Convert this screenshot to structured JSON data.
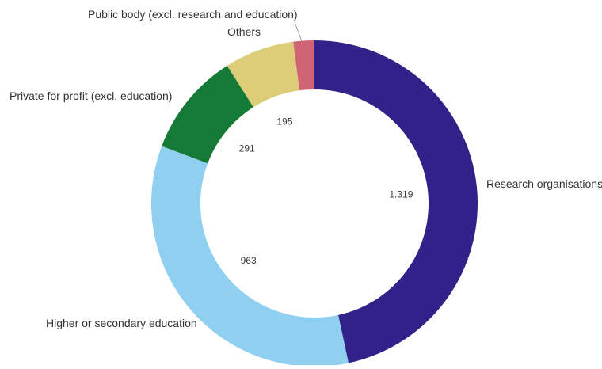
{
  "chart_data": {
    "type": "pie",
    "donut": true,
    "title": "",
    "categories": [
      "Research organisations",
      "Higher or secondary education",
      "Private for profit (excl. education)",
      "Others",
      "Public body (excl. research and education)"
    ],
    "values": [
      1319,
      963,
      291,
      195,
      59
    ],
    "value_labels": [
      "1.319",
      "963",
      "291",
      "195",
      ""
    ],
    "colors": [
      "#33218a",
      "#8fcfef",
      "#147a35",
      "#ddcc78",
      "#cf6473"
    ],
    "legend": "none"
  }
}
